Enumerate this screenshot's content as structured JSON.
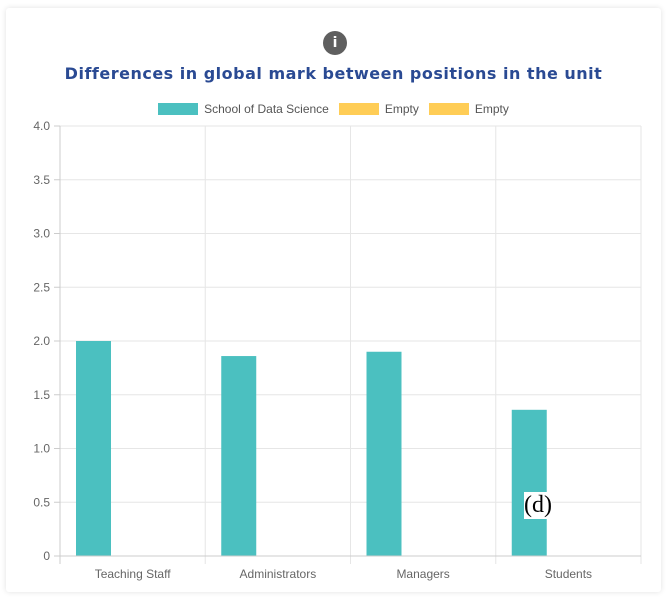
{
  "info_icon": "i",
  "chart_data": {
    "type": "bar",
    "title": "Differences in global mark between positions in the unit",
    "categories": [
      "Teaching Staff",
      "Administrators",
      "Managers",
      "Students"
    ],
    "series": [
      {
        "name": "School of Data Science",
        "color": "#4bc0c0",
        "values": [
          2.0,
          1.86,
          1.9,
          1.36
        ]
      },
      {
        "name": "Empty",
        "color": "#ffcd56",
        "values": [
          0,
          0,
          0,
          0
        ]
      },
      {
        "name": "Empty",
        "color": "#ffcd56",
        "values": [
          0,
          0,
          0,
          0
        ]
      }
    ],
    "ylim": [
      0,
      4.0
    ],
    "yticks": [
      "0",
      "0.5",
      "1.0",
      "1.5",
      "2.0",
      "2.5",
      "3.0",
      "3.5",
      "4.0"
    ],
    "yticks_values": [
      0,
      0.5,
      1.0,
      1.5,
      2.0,
      2.5,
      3.0,
      3.5,
      4.0
    ],
    "legend_position": "top",
    "grid": true,
    "annotation": "(d)"
  }
}
